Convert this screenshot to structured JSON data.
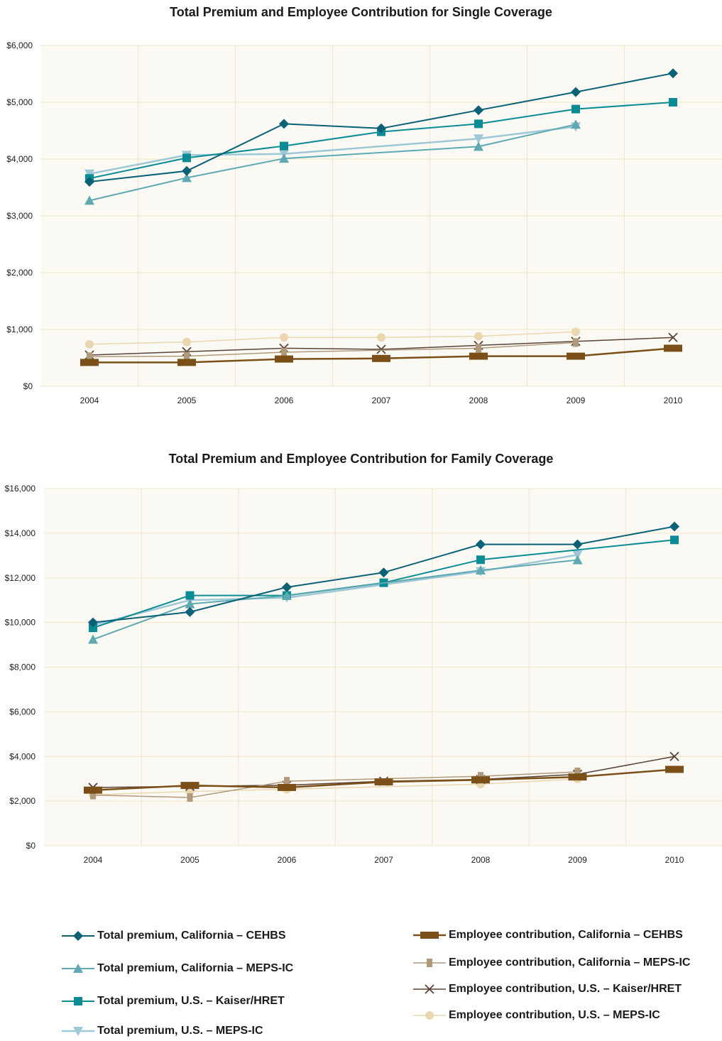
{
  "chart_data": [
    {
      "type": "line",
      "title": "Total Premium and Employee Contribution for Single Coverage",
      "xlabel": "",
      "ylabel": "",
      "x": [
        "2004",
        "2005",
        "2006",
        "2007",
        "2008",
        "2009",
        "2010"
      ],
      "y_ticks": [
        "$0",
        "$1,000",
        "$2,000",
        "$3,000",
        "$4,000",
        "$5,000",
        "$6,000"
      ],
      "ylim": [
        0,
        6000
      ],
      "grid": true,
      "series": [
        {
          "name": "Total premium, California – CEHBS",
          "values": [
            3600,
            3790,
            4620,
            4540,
            4860,
            5180,
            5510
          ]
        },
        {
          "name": "Total premium, California – MEPS-IC",
          "values": [
            3270,
            3670,
            4010,
            null,
            4220,
            4610,
            null
          ]
        },
        {
          "name": "Total premium, U.S. – Kaiser/HRET",
          "values": [
            3660,
            4020,
            4230,
            4480,
            4620,
            4880,
            5000
          ]
        },
        {
          "name": "Total premium, U.S. – MEPS-IC",
          "values": [
            3740,
            4070,
            4090,
            null,
            4360,
            4570,
            null
          ]
        },
        {
          "name": "Employee contribution, California – CEHBS",
          "values": [
            420,
            420,
            480,
            490,
            530,
            530,
            670
          ]
        },
        {
          "name": "Employee contribution, California – MEPS-IC",
          "values": [
            520,
            530,
            600,
            null,
            670,
            770,
            null
          ]
        },
        {
          "name": "Employee contribution, U.S. – Kaiser/HRET",
          "values": [
            550,
            610,
            670,
            650,
            720,
            790,
            860
          ]
        },
        {
          "name": "Employee contribution, U.S. – MEPS-IC",
          "values": [
            740,
            780,
            860,
            860,
            880,
            960,
            null
          ]
        }
      ]
    },
    {
      "type": "line",
      "title": "Total Premium and Employee Contribution for Family Coverage",
      "xlabel": "",
      "ylabel": "",
      "x": [
        "2004",
        "2005",
        "2006",
        "2007",
        "2008",
        "2009",
        "2010"
      ],
      "y_ticks": [
        "$0",
        "$2,000",
        "$4,000",
        "$6,000",
        "$8,000",
        "$10,000",
        "$12,000",
        "$14,000",
        "$16,000"
      ],
      "ylim": [
        0,
        16000
      ],
      "grid": true,
      "series": [
        {
          "name": "Total premium, California – CEHBS",
          "values": [
            10000,
            10470,
            11580,
            12240,
            13500,
            13500,
            14300
          ]
        },
        {
          "name": "Total premium, California – MEPS-IC",
          "values": [
            9240,
            10830,
            11200,
            null,
            12340,
            12800,
            null
          ]
        },
        {
          "name": "Total premium, U.S. – Kaiser/HRET",
          "values": [
            9760,
            11210,
            11210,
            11780,
            12810,
            null,
            13700
          ]
        },
        {
          "name": "Total premium, U.S. – MEPS-IC",
          "values": [
            9880,
            11000,
            11110,
            null,
            12290,
            13030,
            null
          ]
        },
        {
          "name": "Employee contribution, California – CEHBS",
          "values": [
            2490,
            2700,
            2610,
            2860,
            2950,
            3080,
            3420
          ]
        },
        {
          "name": "Employee contribution, California – MEPS-IC",
          "values": [
            2270,
            2160,
            2890,
            null,
            3110,
            3310,
            null
          ]
        },
        {
          "name": "Employee contribution, U.S. – Kaiser/HRET",
          "values": [
            2610,
            2660,
            2710,
            2890,
            2970,
            3200,
            4000
          ]
        },
        {
          "name": "Employee contribution, U.S. – MEPS-IC",
          "values": [
            2280,
            2430,
            2530,
            null,
            2760,
            2990,
            null
          ]
        }
      ]
    }
  ],
  "series_style": [
    {
      "color": "#0b6277",
      "marker": "diamond",
      "width": 2
    },
    {
      "color": "#5fa9b3",
      "marker": "triangle-up",
      "width": 2
    },
    {
      "color": "#0a8c94",
      "marker": "square",
      "width": 2
    },
    {
      "color": "#9ec8d5",
      "marker": "triangle-down",
      "width": 2.5
    },
    {
      "color": "#7a5018",
      "marker": "wide-rect",
      "width": 2.5
    },
    {
      "color": "#b09a7c",
      "marker": "small-rect",
      "width": 1.5
    },
    {
      "color": "#5a4337",
      "marker": "x",
      "width": 1.5
    },
    {
      "color": "#ead7b0",
      "marker": "circle",
      "width": 1.5
    }
  ],
  "legend": {
    "left": [
      "Total premium, California – CEHBS",
      "Total premium, California – MEPS-IC",
      "Total premium, U.S. – Kaiser/HRET",
      "Total premium, U.S. – MEPS-IC"
    ],
    "right": [
      "Employee contribution, California – CEHBS",
      "Employee contribution, California – MEPS-IC",
      "Employee contribution, U.S. – Kaiser/HRET",
      "Employee contribution, U.S. – MEPS-IC"
    ]
  },
  "colors": {
    "plot_background": "#fbf9f4",
    "grid": "#f2e6c8"
  }
}
